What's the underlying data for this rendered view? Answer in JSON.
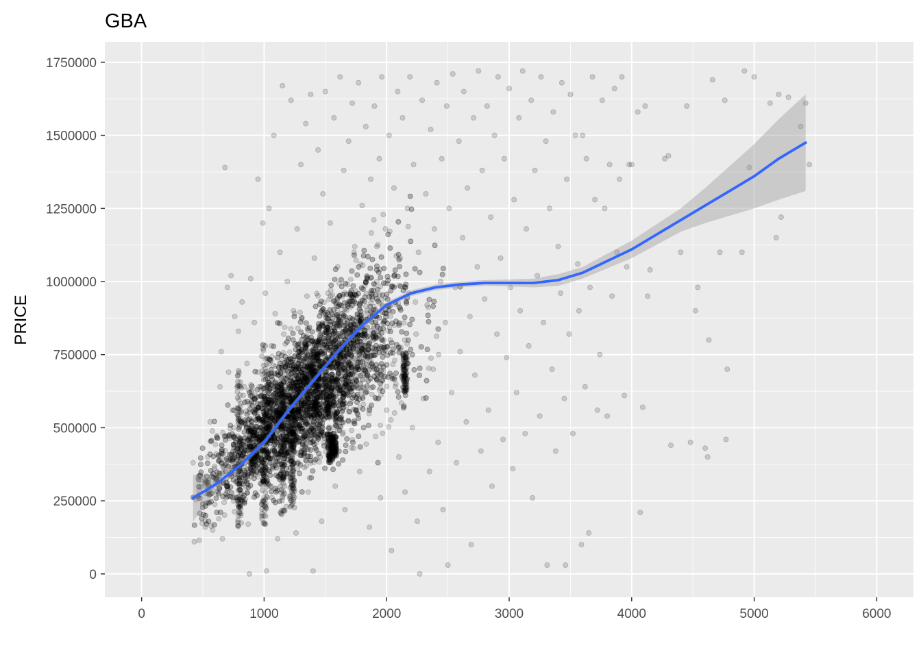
{
  "chart_data": {
    "type": "scatter",
    "title": "GBA",
    "xlabel": "",
    "ylabel": "PRICE",
    "xlim": [
      -300,
      6300
    ],
    "ylim": [
      -80000,
      1820000
    ],
    "x_ticks": [
      0,
      1000,
      2000,
      3000,
      4000,
      5000,
      6000
    ],
    "x_tick_labels": [
      "0",
      "1000",
      "2000",
      "3000",
      "4000",
      "5000",
      "6000"
    ],
    "y_ticks": [
      0,
      250000,
      500000,
      750000,
      1000000,
      1250000,
      1500000,
      1750000
    ],
    "y_tick_labels": [
      "0",
      "250000",
      "500000",
      "750000",
      "1000000",
      "1250000",
      "1500000",
      "1750000"
    ],
    "grid": true,
    "legend": "none",
    "colors": {
      "panel_background": "#ebebeb",
      "grid_major": "#ffffff",
      "points": "#000000",
      "smooth_line": "#3366ff",
      "confidence_band": "#999999"
    },
    "point_opacity": 0.15,
    "points_description_summary": "Dense cluster of semi-transparent points, x mostly 600–2500 and y mostly 100000–1000000; sparser points up to x≈5450 and y≈1720000.",
    "points": [
      [
        420,
        380000
      ],
      [
        430,
        110000
      ],
      [
        470,
        115000
      ],
      [
        520,
        180000
      ],
      [
        540,
        400000
      ],
      [
        560,
        520000
      ],
      [
        580,
        150000
      ],
      [
        600,
        310000
      ],
      [
        610,
        410000
      ],
      [
        640,
        640000
      ],
      [
        650,
        760000
      ],
      [
        660,
        120000
      ],
      [
        680,
        1390000
      ],
      [
        690,
        260000
      ],
      [
        700,
        980000
      ],
      [
        710,
        690000
      ],
      [
        720,
        340000
      ],
      [
        730,
        1020000
      ],
      [
        740,
        560000
      ],
      [
        760,
        880000
      ],
      [
        770,
        450000
      ],
      [
        790,
        830000
      ],
      [
        800,
        300000
      ],
      [
        810,
        200000
      ],
      [
        820,
        930000
      ],
      [
        830,
        610000
      ],
      [
        840,
        420000
      ],
      [
        860,
        720000
      ],
      [
        870,
        170000
      ],
      [
        880,
        0
      ],
      [
        890,
        1010000
      ],
      [
        900,
        520000
      ],
      [
        920,
        860000
      ],
      [
        930,
        340000
      ],
      [
        950,
        1350000
      ],
      [
        960,
        640000
      ],
      [
        970,
        480000
      ],
      [
        990,
        1200000
      ],
      [
        1000,
        260000
      ],
      [
        1010,
        960000
      ],
      [
        1020,
        10000
      ],
      [
        1030,
        580000
      ],
      [
        1040,
        1250000
      ],
      [
        1060,
        780000
      ],
      [
        1070,
        360000
      ],
      [
        1080,
        1500000
      ],
      [
        1090,
        890000
      ],
      [
        1110,
        120000
      ],
      [
        1120,
        680000
      ],
      [
        1130,
        1100000
      ],
      [
        1140,
        450000
      ],
      [
        1150,
        1670000
      ],
      [
        1160,
        820000
      ],
      [
        1180,
        230000
      ],
      [
        1190,
        1000000
      ],
      [
        1200,
        560000
      ],
      [
        1220,
        1620000
      ],
      [
        1230,
        370000
      ],
      [
        1240,
        900000
      ],
      [
        1260,
        140000
      ],
      [
        1270,
        1180000
      ],
      [
        1280,
        640000
      ],
      [
        1300,
        1400000
      ],
      [
        1310,
        760000
      ],
      [
        1320,
        470000
      ],
      [
        1340,
        1540000
      ],
      [
        1350,
        950000
      ],
      [
        1360,
        280000
      ],
      [
        1380,
        1640000
      ],
      [
        1390,
        700000
      ],
      [
        1400,
        10000
      ],
      [
        1410,
        1080000
      ],
      [
        1430,
        520000
      ],
      [
        1440,
        1450000
      ],
      [
        1450,
        840000
      ],
      [
        1470,
        180000
      ],
      [
        1480,
        1300000
      ],
      [
        1490,
        620000
      ],
      [
        1500,
        1650000
      ],
      [
        1520,
        960000
      ],
      [
        1530,
        400000
      ],
      [
        1540,
        1200000
      ],
      [
        1560,
        740000
      ],
      [
        1570,
        1560000
      ],
      [
        1580,
        300000
      ],
      [
        1600,
        1050000
      ],
      [
        1610,
        880000
      ],
      [
        1620,
        1700000
      ],
      [
        1640,
        560000
      ],
      [
        1650,
        1380000
      ],
      [
        1660,
        220000
      ],
      [
        1680,
        990000
      ],
      [
        1690,
        1480000
      ],
      [
        1700,
        660000
      ],
      [
        1720,
        1610000
      ],
      [
        1730,
        430000
      ],
      [
        1740,
        1120000
      ],
      [
        1760,
        820000
      ],
      [
        1770,
        1680000
      ],
      [
        1780,
        350000
      ],
      [
        1800,
        1260000
      ],
      [
        1810,
        580000
      ],
      [
        1830,
        1530000
      ],
      [
        1840,
        900000
      ],
      [
        1860,
        160000
      ],
      [
        1870,
        1350000
      ],
      [
        1880,
        720000
      ],
      [
        1900,
        1600000
      ],
      [
        1910,
        470000
      ],
      [
        1920,
        1000000
      ],
      [
        1940,
        1420000
      ],
      [
        1950,
        260000
      ],
      [
        1960,
        1700000
      ],
      [
        1980,
        780000
      ],
      [
        1990,
        1180000
      ],
      [
        2000,
        560000
      ],
      [
        2020,
        1500000
      ],
      [
        2030,
        880000
      ],
      [
        2040,
        80000
      ],
      [
        2060,
        1320000
      ],
      [
        2070,
        640000
      ],
      [
        2090,
        1650000
      ],
      [
        2100,
        400000
      ],
      [
        2110,
        1080000
      ],
      [
        2130,
        1560000
      ],
      [
        2140,
        740000
      ],
      [
        2150,
        280000
      ],
      [
        2170,
        1250000
      ],
      [
        2180,
        960000
      ],
      [
        2190,
        1700000
      ],
      [
        2210,
        500000
      ],
      [
        2220,
        1400000
      ],
      [
        2240,
        820000
      ],
      [
        2250,
        180000
      ],
      [
        2260,
        1100000
      ],
      [
        2270,
        0
      ],
      [
        2290,
        1620000
      ],
      [
        2300,
        600000
      ],
      [
        2320,
        1300000
      ],
      [
        2330,
        920000
      ],
      [
        2350,
        350000
      ],
      [
        2360,
        1520000
      ],
      [
        2380,
        700000
      ],
      [
        2390,
        1180000
      ],
      [
        2410,
        1680000
      ],
      [
        2420,
        450000
      ],
      [
        2440,
        1000000
      ],
      [
        2450,
        1420000
      ],
      [
        2460,
        220000
      ],
      [
        2480,
        860000
      ],
      [
        2490,
        1600000
      ],
      [
        2500,
        30000
      ],
      [
        2510,
        1250000
      ],
      [
        2530,
        620000
      ],
      [
        2540,
        1710000
      ],
      [
        2560,
        980000
      ],
      [
        2570,
        380000
      ],
      [
        2590,
        1480000
      ],
      [
        2600,
        760000
      ],
      [
        2620,
        1150000
      ],
      [
        2630,
        1650000
      ],
      [
        2650,
        520000
      ],
      [
        2660,
        1320000
      ],
      [
        2680,
        880000
      ],
      [
        2690,
        100000
      ],
      [
        2710,
        1560000
      ],
      [
        2720,
        680000
      ],
      [
        2740,
        1050000
      ],
      [
        2750,
        1720000
      ],
      [
        2770,
        420000
      ],
      [
        2780,
        1380000
      ],
      [
        2800,
        940000
      ],
      [
        2820,
        1600000
      ],
      [
        2830,
        560000
      ],
      [
        2850,
        1220000
      ],
      [
        2860,
        300000
      ],
      [
        2880,
        1500000
      ],
      [
        2900,
        820000
      ],
      [
        2910,
        1700000
      ],
      [
        2930,
        1080000
      ],
      [
        2950,
        460000
      ],
      [
        2960,
        1420000
      ],
      [
        2980,
        740000
      ],
      [
        3000,
        1660000
      ],
      [
        3010,
        980000
      ],
      [
        3030,
        360000
      ],
      [
        3040,
        1280000
      ],
      [
        3060,
        620000
      ],
      [
        3080,
        1560000
      ],
      [
        3090,
        900000
      ],
      [
        3110,
        1720000
      ],
      [
        3130,
        480000
      ],
      [
        3140,
        1180000
      ],
      [
        3160,
        780000
      ],
      [
        3180,
        1620000
      ],
      [
        3190,
        260000
      ],
      [
        3210,
        1380000
      ],
      [
        3230,
        1020000
      ],
      [
        3250,
        540000
      ],
      [
        3260,
        1700000
      ],
      [
        3280,
        860000
      ],
      [
        3300,
        1480000
      ],
      [
        3310,
        30000
      ],
      [
        3330,
        1250000
      ],
      [
        3350,
        700000
      ],
      [
        3360,
        1580000
      ],
      [
        3380,
        420000
      ],
      [
        3400,
        1120000
      ],
      [
        3420,
        960000
      ],
      [
        3430,
        1680000
      ],
      [
        3450,
        600000
      ],
      [
        3460,
        30000
      ],
      [
        3470,
        1350000
      ],
      [
        3490,
        820000
      ],
      [
        3500,
        1640000
      ],
      [
        3520,
        480000
      ],
      [
        3540,
        1500000
      ],
      [
        3560,
        1060000
      ],
      [
        3570,
        900000
      ],
      [
        3590,
        100000
      ],
      [
        3600,
        1500000
      ],
      [
        3620,
        640000
      ],
      [
        3630,
        1420000
      ],
      [
        3650,
        140000
      ],
      [
        3660,
        980000
      ],
      [
        3680,
        1700000
      ],
      [
        3700,
        1280000
      ],
      [
        3720,
        560000
      ],
      [
        3740,
        750000
      ],
      [
        3760,
        1620000
      ],
      [
        3780,
        1250000
      ],
      [
        3800,
        540000
      ],
      [
        3820,
        1400000
      ],
      [
        3840,
        950000
      ],
      [
        3860,
        1660000
      ],
      [
        3880,
        1100000
      ],
      [
        3900,
        1350000
      ],
      [
        3920,
        1700000
      ],
      [
        3940,
        610000
      ],
      [
        3960,
        1050000
      ],
      [
        3980,
        1400000
      ],
      [
        4000,
        1400000
      ],
      [
        4050,
        1580000
      ],
      [
        4070,
        210000
      ],
      [
        4090,
        570000
      ],
      [
        4110,
        1600000
      ],
      [
        4130,
        950000
      ],
      [
        4150,
        1040000
      ],
      [
        4270,
        1420000
      ],
      [
        4300,
        1430000
      ],
      [
        4320,
        440000
      ],
      [
        4400,
        1100000
      ],
      [
        4450,
        1600000
      ],
      [
        4480,
        450000
      ],
      [
        4520,
        900000
      ],
      [
        4540,
        980000
      ],
      [
        4600,
        430000
      ],
      [
        4620,
        400000
      ],
      [
        4630,
        800000
      ],
      [
        4660,
        1690000
      ],
      [
        4720,
        1100000
      ],
      [
        4760,
        1620000
      ],
      [
        4770,
        460000
      ],
      [
        4780,
        700000
      ],
      [
        4900,
        1100000
      ],
      [
        4920,
        1720000
      ],
      [
        4960,
        1390000
      ],
      [
        5000,
        1700000
      ],
      [
        5130,
        1610000
      ],
      [
        5180,
        1150000
      ],
      [
        5200,
        1640000
      ],
      [
        5220,
        1220000
      ],
      [
        5280,
        1630000
      ],
      [
        5380,
        1530000
      ],
      [
        5420,
        1610000
      ],
      [
        5450,
        1400000
      ]
    ],
    "smooth_line": {
      "x": [
        420,
        600,
        800,
        1000,
        1200,
        1400,
        1600,
        1800,
        2000,
        2200,
        2400,
        2600,
        2800,
        3000,
        3200,
        3400,
        3600,
        3800,
        4000,
        4200,
        4400,
        4600,
        4800,
        5000,
        5200,
        5420
      ],
      "y": [
        260000,
        305000,
        370000,
        450000,
        560000,
        660000,
        760000,
        850000,
        920000,
        960000,
        980000,
        990000,
        995000,
        995000,
        995000,
        1005000,
        1030000,
        1070000,
        1110000,
        1160000,
        1210000,
        1260000,
        1310000,
        1360000,
        1420000,
        1475000
      ],
      "ci_low": [
        180000,
        280000,
        355000,
        440000,
        550000,
        650000,
        750000,
        840000,
        910000,
        950000,
        970000,
        980000,
        985000,
        983000,
        980000,
        985000,
        1010000,
        1045000,
        1080000,
        1125000,
        1170000,
        1200000,
        1225000,
        1250000,
        1280000,
        1310000
      ],
      "ci_high": [
        340000,
        330000,
        385000,
        460000,
        570000,
        670000,
        770000,
        860000,
        930000,
        970000,
        990000,
        1000000,
        1005000,
        1007000,
        1010000,
        1025000,
        1050000,
        1095000,
        1140000,
        1195000,
        1250000,
        1320000,
        1395000,
        1470000,
        1555000,
        1640000
      ]
    }
  }
}
